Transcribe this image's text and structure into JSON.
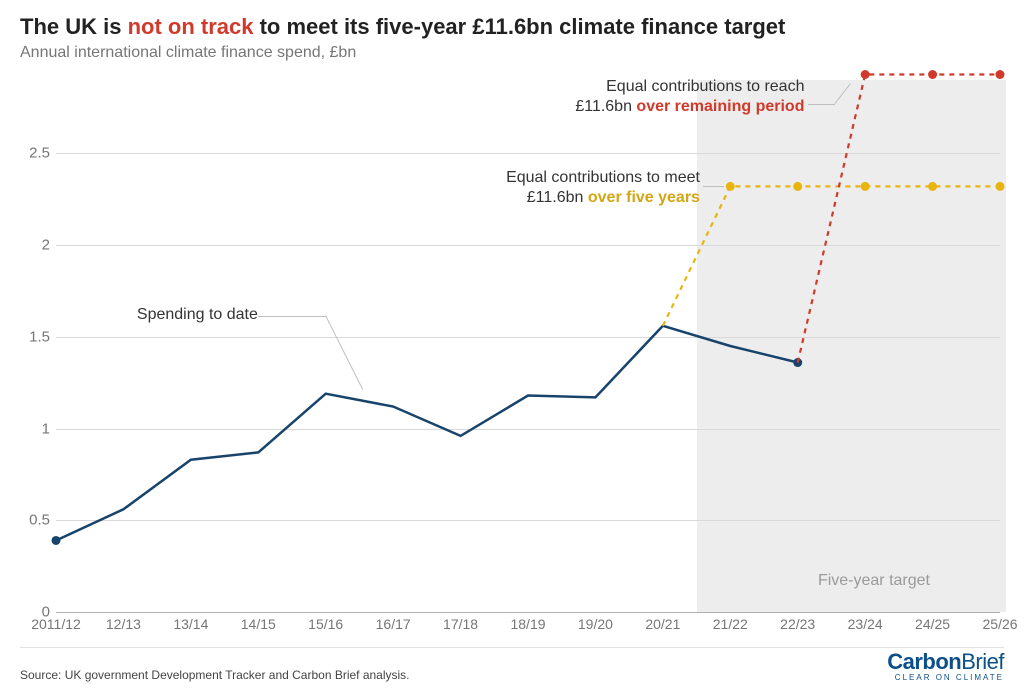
{
  "title_pre": "The UK is ",
  "title_hl": "not on track",
  "title_post": " to meet its five-year £11.6bn climate finance target",
  "subtitle": "Annual international climate finance spend, £bn",
  "chart": {
    "type": "line",
    "x_categories": [
      "2011/12",
      "12/13",
      "13/14",
      "14/15",
      "15/16",
      "16/17",
      "17/18",
      "18/19",
      "19/20",
      "20/21",
      "21/22",
      "22/23",
      "23/24",
      "24/25",
      "25/26"
    ],
    "ylim": [
      0,
      2.9
    ],
    "yticks": [
      0,
      0.5,
      1,
      1.5,
      2,
      2.5
    ],
    "ytick_labels": [
      "0",
      "0.5",
      "1",
      "1.5",
      "2",
      "2.5"
    ],
    "grid_color": "#d9d9d9",
    "baseline_color": "#b0b0b0",
    "background_color": "#ffffff",
    "shade": {
      "from_index": 10,
      "to_index": 14,
      "color": "#ededed"
    },
    "series": {
      "actual": {
        "label": "Spending to date",
        "color": "#18436b",
        "line_width": 2.5,
        "dash": "none",
        "marker": {
          "indices": [
            0,
            11
          ],
          "radius": 4.5
        },
        "values": [
          0.39,
          0.56,
          0.83,
          0.87,
          1.19,
          1.12,
          0.96,
          1.18,
          1.17,
          1.56,
          1.45,
          1.36,
          null,
          null,
          null
        ]
      },
      "five_year": {
        "label": "Equal contributions to meet £11.6bn over five years",
        "color": "#e8b40e",
        "line_width": 2.2,
        "dash": "5,5",
        "marker": {
          "indices": [
            10,
            11,
            12,
            13,
            14
          ],
          "radius": 4.5
        },
        "values": [
          null,
          null,
          null,
          null,
          null,
          null,
          null,
          null,
          null,
          1.56,
          2.32,
          2.32,
          2.32,
          2.32,
          2.32
        ]
      },
      "remaining": {
        "label": "Equal contributions to reach £11.6bn over remaining period",
        "color": "#d13a2b",
        "line_width": 2.2,
        "dash": "5,5",
        "marker": {
          "indices": [
            12,
            13,
            14
          ],
          "radius": 4.5
        },
        "values": [
          null,
          null,
          null,
          null,
          null,
          null,
          null,
          null,
          null,
          null,
          null,
          1.36,
          2.93,
          2.93,
          2.93
        ]
      }
    },
    "annotations": {
      "actual_label": "Spending to date",
      "five_year_pre": "Equal contributions to meet",
      "five_year_amt": "£11.6bn ",
      "five_year_hl": "over five years",
      "remaining_pre": "Equal contributions to reach",
      "remaining_amt": "£11.6bn ",
      "remaining_hl": "over remaining period",
      "target_label": "Five-year target"
    },
    "label_fontsize": 15,
    "annot_fontsize": 16
  },
  "footer": {
    "source": "Source: UK government Development Tracker and Carbon Brief analysis.",
    "brand_a": "Carbon",
    "brand_b": "Brief",
    "brand_tag": "CLEAR ON CLIMATE"
  }
}
